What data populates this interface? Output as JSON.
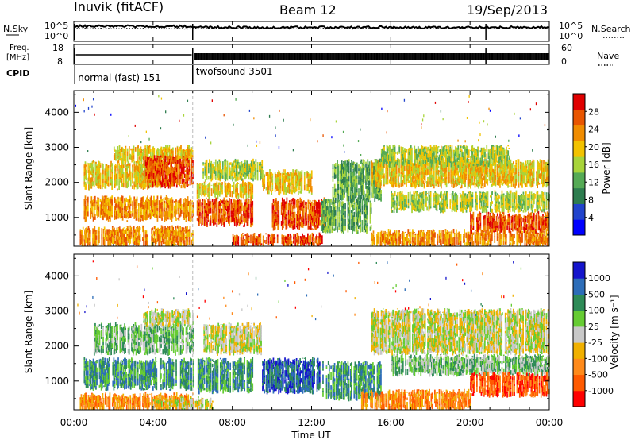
{
  "header": {
    "station": "Inuvik (fitACF)",
    "beam": "Beam 12",
    "date": "19/Sep/2013"
  },
  "top_panels": {
    "nsky_label": "N.Sky",
    "nsky_ticks": [
      "10^5",
      "10^0"
    ],
    "nsearch_label": "N.Search",
    "nsearch_ticks": [
      "10^5",
      "10^0"
    ],
    "freq_label_line1": "Freq.",
    "freq_label_line2": "[MHz]",
    "freq_ticks": [
      "18",
      "8"
    ],
    "nave_label": "Nave",
    "nave_ticks": [
      "60",
      "0"
    ],
    "cpid_label": "CPID",
    "modes": [
      {
        "name": "normal (fast) 151",
        "start_hour": 0.05
      },
      {
        "name": "twofsound 3501",
        "start_hour": 6.0
      }
    ]
  },
  "chart_data": [
    {
      "type": "heatmap",
      "name": "power",
      "ylabel": "Slant Range [km]",
      "ylim": [
        180,
        4620
      ],
      "yticks": [
        "1000",
        "2000",
        "3000",
        "4000"
      ],
      "xlim": [
        0,
        24
      ],
      "colorbar_label": "Power [dB]",
      "colorbar_ticks": [
        "4",
        "8",
        "12",
        "16",
        "20",
        "24",
        "28"
      ],
      "colors": [
        "#0000ff",
        "#2244cc",
        "#2e7d4f",
        "#55aa55",
        "#a8d43a",
        "#f2c200",
        "#f08c00",
        "#e85500",
        "#e00000"
      ],
      "bands": [
        {
          "h0": 0.3,
          "h1": 6.0,
          "r0": 200,
          "r1": 700,
          "level": 6
        },
        {
          "h0": 0.5,
          "h1": 6.0,
          "r0": 950,
          "r1": 1550,
          "level": 6
        },
        {
          "h0": 0.5,
          "h1": 4.5,
          "r0": 1850,
          "r1": 2550,
          "level": 5
        },
        {
          "h0": 2.0,
          "h1": 6.0,
          "r0": 2600,
          "r1": 3000,
          "level": 5
        },
        {
          "h0": 3.5,
          "h1": 6.0,
          "r0": 1900,
          "r1": 2700,
          "level": 7
        },
        {
          "h0": 6.2,
          "h1": 9.0,
          "r0": 800,
          "r1": 1500,
          "level": 7
        },
        {
          "h0": 6.2,
          "h1": 9.0,
          "r0": 1600,
          "r1": 2000,
          "level": 5
        },
        {
          "h0": 6.5,
          "h1": 9.5,
          "r0": 2100,
          "r1": 2600,
          "level": 4
        },
        {
          "h0": 8.0,
          "h1": 12.5,
          "r0": 200,
          "r1": 500,
          "level": 7
        },
        {
          "h0": 10.0,
          "h1": 12.8,
          "r0": 700,
          "r1": 1500,
          "level": 7
        },
        {
          "h0": 9.5,
          "h1": 12.0,
          "r0": 1700,
          "r1": 2300,
          "level": 5
        },
        {
          "h0": 12.5,
          "h1": 15.0,
          "r0": 600,
          "r1": 1500,
          "level": 3
        },
        {
          "h0": 13.0,
          "h1": 15.5,
          "r0": 1500,
          "r1": 2600,
          "level": 3
        },
        {
          "h0": 15.0,
          "h1": 24.0,
          "r0": 1900,
          "r1": 2600,
          "level": 5
        },
        {
          "h0": 15.5,
          "h1": 22.0,
          "r0": 2500,
          "r1": 3000,
          "level": 4
        },
        {
          "h0": 16.0,
          "h1": 24.0,
          "r0": 1200,
          "r1": 1700,
          "level": 4
        },
        {
          "h0": 15.0,
          "h1": 24.0,
          "r0": 200,
          "r1": 600,
          "level": 6
        },
        {
          "h0": 20.0,
          "h1": 24.0,
          "r0": 600,
          "r1": 1100,
          "level": 7
        }
      ]
    },
    {
      "type": "heatmap",
      "name": "velocity",
      "ylabel": "Slant Range [km]",
      "ylim": [
        180,
        4620
      ],
      "yticks": [
        "1000",
        "2000",
        "3000",
        "4000"
      ],
      "xlim": [
        0,
        24
      ],
      "xticks": [
        "00:00",
        "04:00",
        "08:00",
        "12:00",
        "16:00",
        "20:00",
        "00:00"
      ],
      "xlabel": "Time UT",
      "colorbar_label": "Velocity [m s⁻¹]",
      "colorbar_ticks": [
        "1000",
        "500",
        "100",
        "25",
        "-25",
        "-100",
        "-500",
        "-1000"
      ],
      "colors": [
        "#ff0000",
        "#ff5a00",
        "#ff8a1a",
        "#f0b000",
        "#c8c8c8",
        "#66cc33",
        "#2e8b57",
        "#2d6db8",
        "#1515cc"
      ],
      "bands": [
        {
          "h0": 0.3,
          "h1": 6.0,
          "r0": 200,
          "r1": 600,
          "level": 2
        },
        {
          "h0": 0.5,
          "h1": 6.0,
          "r0": 800,
          "r1": 1600,
          "level": 6
        },
        {
          "h0": 1.0,
          "h1": 6.0,
          "r0": 1800,
          "r1": 2600,
          "level": 5
        },
        {
          "h0": 3.5,
          "h1": 6.0,
          "r0": 2600,
          "r1": 3000,
          "level": 4
        },
        {
          "h0": 6.2,
          "h1": 9.0,
          "r0": 700,
          "r1": 1600,
          "level": 6
        },
        {
          "h0": 6.5,
          "h1": 9.5,
          "r0": 1800,
          "r1": 2600,
          "level": 4
        },
        {
          "h0": 9.5,
          "h1": 12.5,
          "r0": 700,
          "r1": 1600,
          "level": 7
        },
        {
          "h0": 12.5,
          "h1": 15.5,
          "r0": 500,
          "r1": 1500,
          "level": 6
        },
        {
          "h0": 15.0,
          "h1": 24.0,
          "r0": 1800,
          "r1": 3000,
          "level": 4
        },
        {
          "h0": 16.0,
          "h1": 24.0,
          "r0": 1200,
          "r1": 1700,
          "level": 5
        },
        {
          "h0": 14.5,
          "h1": 20.0,
          "r0": 200,
          "r1": 700,
          "level": 2
        },
        {
          "h0": 20.0,
          "h1": 24.0,
          "r0": 600,
          "r1": 1200,
          "level": 1
        },
        {
          "h0": 4.0,
          "h1": 7.0,
          "r0": 200,
          "r1": 500,
          "level": 4
        }
      ]
    }
  ]
}
